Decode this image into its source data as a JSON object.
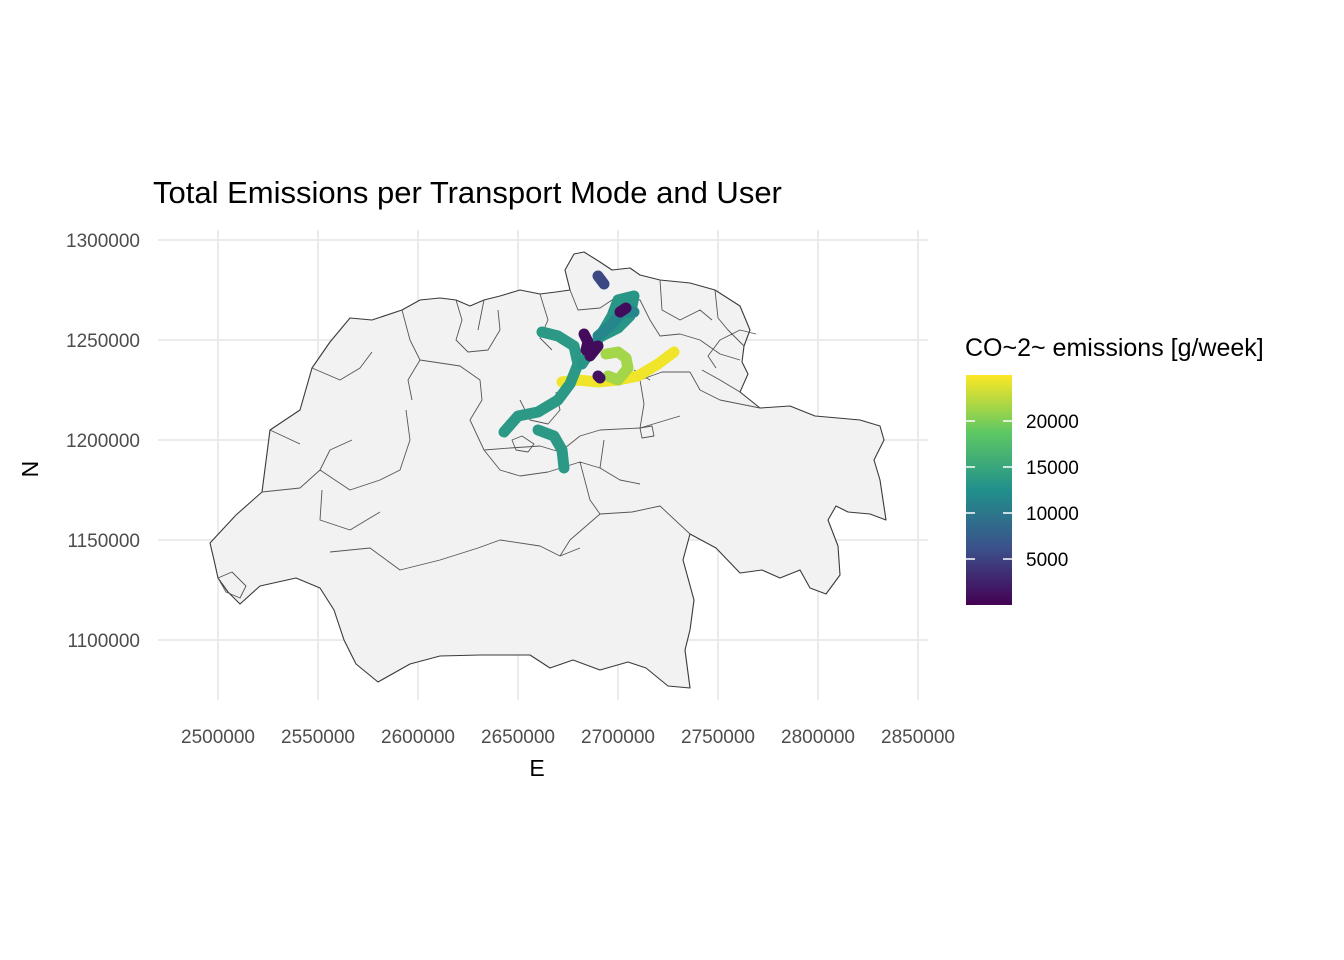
{
  "chart_data": {
    "type": "map",
    "title": "Total Emissions per Transport Mode and User",
    "xlabel": "E",
    "ylabel": "N",
    "xlim": [
      2470000,
      2855000
    ],
    "ylim": [
      1070000,
      1305000
    ],
    "x_ticks": [
      2500000,
      2550000,
      2600000,
      2650000,
      2700000,
      2750000,
      2800000,
      2850000
    ],
    "y_ticks": [
      1100000,
      1150000,
      1200000,
      1250000,
      1300000
    ],
    "x_tick_labels": [
      "2500000",
      "2550000",
      "2600000",
      "2650000",
      "2700000",
      "2750000",
      "2800000",
      "2850000"
    ],
    "y_tick_labels": [
      "1100000",
      "1150000",
      "1200000",
      "1250000",
      "1300000"
    ],
    "legend": {
      "title": "CO~2~ emissions [g/week]",
      "position": "right",
      "range": [
        0,
        25000
      ],
      "breaks": [
        5000,
        10000,
        15000,
        20000
      ],
      "break_labels": [
        "5000",
        "10000",
        "15000",
        "20000"
      ],
      "palette": [
        "#440154",
        "#3b528b",
        "#21908c",
        "#5dc863",
        "#fde725"
      ]
    },
    "tracks": [
      {
        "value": 24500,
        "points": [
          [
            2672000,
            1229000
          ],
          [
            2680000,
            1230000
          ],
          [
            2690000,
            1229000
          ],
          [
            2700000,
            1230000
          ],
          [
            2710000,
            1232000
          ],
          [
            2720000,
            1238000
          ],
          [
            2728000,
            1244000
          ]
        ]
      },
      {
        "value": 21500,
        "points": [
          [
            2694000,
            1243000
          ],
          [
            2700000,
            1244000
          ],
          [
            2704000,
            1241000
          ],
          [
            2705000,
            1236000
          ],
          [
            2700000,
            1230000
          ],
          [
            2695000,
            1232000
          ]
        ]
      },
      {
        "value": 13500,
        "points": [
          [
            2643000,
            1204000
          ],
          [
            2650000,
            1212000
          ],
          [
            2660000,
            1214000
          ],
          [
            2670000,
            1220000
          ],
          [
            2676000,
            1228000
          ],
          [
            2680000,
            1238000
          ],
          [
            2678000,
            1247000
          ],
          [
            2670000,
            1252000
          ],
          [
            2662000,
            1254000
          ]
        ]
      },
      {
        "value": 13500,
        "points": [
          [
            2660000,
            1205000
          ],
          [
            2668000,
            1202000
          ],
          [
            2672000,
            1195000
          ],
          [
            2673000,
            1186000
          ]
        ]
      },
      {
        "value": 13200,
        "points": [
          [
            2682000,
            1238000
          ],
          [
            2690000,
            1250000
          ],
          [
            2697000,
            1262000
          ],
          [
            2700000,
            1270000
          ],
          [
            2708000,
            1272000
          ],
          [
            2706000,
            1262000
          ],
          [
            2700000,
            1256000
          ],
          [
            2692000,
            1252000
          ]
        ]
      },
      {
        "value": 11500,
        "points": [
          [
            2690000,
            1252000
          ],
          [
            2697000,
            1258000
          ],
          [
            2702000,
            1264000
          ],
          [
            2708000,
            1264000
          ]
        ]
      },
      {
        "value": 5500,
        "points": [
          [
            2690000,
            1282000
          ],
          [
            2693000,
            1278000
          ]
        ]
      },
      {
        "value": 800,
        "points": [
          [
            2683000,
            1253000
          ],
          [
            2685000,
            1249000
          ],
          [
            2684000,
            1245000
          ],
          [
            2690000,
            1247000
          ],
          [
            2686000,
            1242000
          ]
        ]
      },
      {
        "value": 800,
        "points": [
          [
            2701000,
            1264000
          ],
          [
            2704000,
            1266000
          ]
        ]
      },
      {
        "value": 1200,
        "points": [
          [
            2690000,
            1232000
          ],
          [
            2691000,
            1231000
          ]
        ]
      }
    ],
    "map_layers": [
      "Switzerland national border",
      "canton boundaries"
    ]
  }
}
